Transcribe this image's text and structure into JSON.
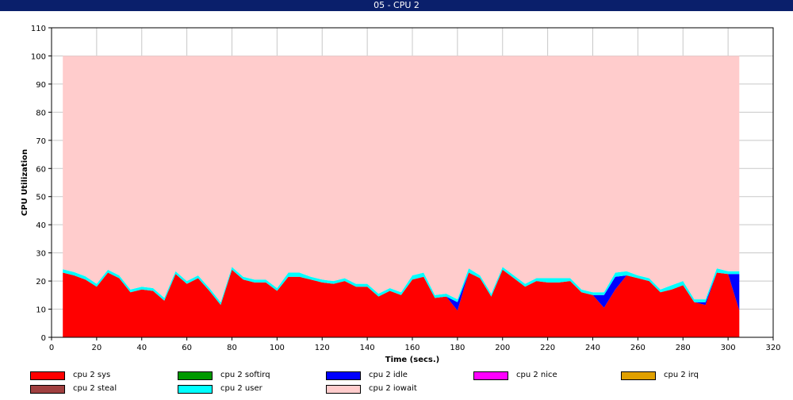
{
  "window": {
    "title": "05 - CPU 2"
  },
  "chart_data": {
    "type": "area",
    "stacked": true,
    "xlabel": "Time (secs.)",
    "ylabel": "CPU Utilization",
    "xlim": [
      0,
      320
    ],
    "ylim": [
      0,
      110
    ],
    "xticks": [
      0,
      20,
      40,
      60,
      80,
      100,
      120,
      140,
      160,
      180,
      200,
      220,
      240,
      260,
      280,
      300,
      320
    ],
    "yticks": [
      0,
      10,
      20,
      30,
      40,
      50,
      60,
      70,
      80,
      90,
      100,
      110
    ],
    "grid": true,
    "legend_position": "bottom",
    "x": [
      5,
      10,
      15,
      20,
      25,
      30,
      35,
      40,
      45,
      50,
      55,
      60,
      65,
      70,
      75,
      80,
      85,
      90,
      95,
      100,
      105,
      110,
      115,
      120,
      125,
      130,
      135,
      140,
      145,
      150,
      155,
      160,
      165,
      170,
      175,
      180,
      185,
      190,
      195,
      200,
      205,
      210,
      215,
      220,
      225,
      230,
      235,
      240,
      245,
      250,
      255,
      260,
      265,
      270,
      275,
      280,
      285,
      290,
      295,
      300,
      305
    ],
    "series": [
      {
        "name": "cpu 2 sys",
        "color": "#ff0000",
        "values": [
          23,
          22,
          20.5,
          18,
          23,
          21,
          16,
          17,
          16.5,
          13,
          22.5,
          19,
          21,
          16.5,
          11.5,
          24,
          20.5,
          19.5,
          19.5,
          16.5,
          21.5,
          21.5,
          20.5,
          19.5,
          19,
          20,
          18,
          18,
          14.5,
          16.5,
          15,
          20.5,
          21.5,
          14,
          14.5,
          9.5,
          23,
          21,
          14.5,
          24,
          21,
          18,
          20,
          19.5,
          19.5,
          20,
          16,
          15,
          10.5,
          17,
          22,
          21,
          20,
          16,
          17,
          18.5,
          12.5,
          11.5,
          23,
          22.5,
          9.5
        ]
      },
      {
        "name": "cpu 2 softirq",
        "color": "#009900",
        "values": [
          0,
          0,
          0,
          0,
          0,
          0,
          0,
          0,
          0,
          0,
          0,
          0,
          0,
          0,
          0,
          0,
          0,
          0,
          0,
          0,
          0,
          0,
          0,
          0,
          0,
          0,
          0,
          0,
          0,
          0,
          0,
          0,
          0,
          0,
          0,
          0,
          0,
          0,
          0,
          0,
          0,
          0,
          0,
          0,
          0,
          0,
          0,
          0,
          0,
          0,
          0,
          0,
          0,
          0,
          0,
          0,
          0,
          0,
          0,
          0,
          0
        ]
      },
      {
        "name": "cpu 2 idle",
        "color": "#0000ff",
        "values": [
          0,
          0,
          0,
          0,
          0,
          0,
          0,
          0,
          0,
          0,
          0,
          0,
          0,
          0,
          0,
          0,
          0,
          0,
          0,
          0,
          0,
          0,
          0,
          0,
          0,
          0,
          0,
          0,
          0,
          0,
          0,
          0,
          0,
          0,
          0,
          3,
          0,
          0,
          0,
          0,
          0,
          0,
          0,
          0,
          0,
          0,
          0,
          0,
          4.5,
          4.5,
          0,
          0,
          0,
          0,
          0,
          0,
          0,
          1,
          0,
          0,
          13
        ]
      },
      {
        "name": "cpu 2 nice",
        "color": "#ff00ff",
        "values": [
          0,
          0,
          0,
          0,
          0,
          0,
          0,
          0,
          0,
          0,
          0,
          0,
          0,
          0,
          0,
          0,
          0,
          0,
          0,
          0,
          0,
          0,
          0,
          0,
          0,
          0,
          0,
          0,
          0,
          0,
          0,
          0,
          0,
          0,
          0,
          0,
          0,
          0,
          0,
          0,
          0,
          0,
          0,
          0,
          0,
          0,
          0,
          0,
          0,
          0,
          0,
          0,
          0,
          0,
          0,
          0,
          0,
          0,
          0,
          0,
          0
        ]
      },
      {
        "name": "cpu 2 irq",
        "color": "#e0a000",
        "values": [
          0,
          0,
          0,
          0,
          0,
          0,
          0,
          0,
          0,
          0,
          0,
          0,
          0,
          0,
          0,
          0,
          0,
          0,
          0,
          0,
          0,
          0,
          0,
          0,
          0,
          0,
          0,
          0,
          0,
          0,
          0,
          0,
          0,
          0,
          0,
          0,
          0,
          0,
          0,
          0,
          0,
          0,
          0,
          0,
          0,
          0,
          0,
          0,
          0,
          0,
          0,
          0,
          0,
          0,
          0,
          0,
          0,
          0,
          0,
          0,
          0
        ]
      },
      {
        "name": "cpu 2 steal",
        "color": "#a04040",
        "values": [
          0,
          0,
          0,
          0,
          0,
          0,
          0,
          0,
          0,
          0,
          0,
          0,
          0,
          0,
          0,
          0,
          0,
          0,
          0,
          0,
          0,
          0,
          0,
          0,
          0,
          0,
          0,
          0,
          0,
          0,
          0,
          0,
          0,
          0,
          0,
          0,
          0,
          0,
          0,
          0,
          0,
          0,
          0,
          0,
          0,
          0,
          0,
          0,
          0,
          0,
          0,
          0,
          0,
          0,
          0,
          0,
          0,
          0,
          0,
          0,
          0
        ]
      },
      {
        "name": "cpu 2 user",
        "color": "#00ffff",
        "values": [
          1.2,
          1.2,
          1.2,
          1,
          1,
          1,
          1,
          1,
          1,
          1,
          1,
          1,
          1,
          1,
          1,
          1,
          1,
          1,
          1,
          1,
          1.5,
          1.5,
          1,
          1,
          1,
          1,
          1,
          1,
          1,
          1,
          1,
          1.5,
          1.5,
          1,
          1,
          1,
          1.5,
          1,
          1,
          1,
          1,
          1,
          1,
          1.5,
          1.5,
          1,
          1,
          1,
          1,
          1.5,
          1.5,
          1,
          1,
          1,
          1.5,
          1.5,
          1,
          1,
          1.5,
          1,
          1
        ]
      },
      {
        "name": "cpu 2 iowait",
        "color": "#ffcccc",
        "values": [
          75.8,
          76.8,
          78.3,
          81,
          76,
          78,
          83,
          82,
          82.5,
          86,
          76.5,
          80,
          78,
          82.5,
          87.5,
          75,
          78.5,
          79.5,
          79.5,
          82.5,
          77,
          77,
          78.5,
          79.5,
          80,
          79,
          81,
          81,
          84.5,
          82.5,
          84,
          78,
          77,
          85,
          84.5,
          86.5,
          75.5,
          78,
          84.5,
          75,
          78,
          81,
          79,
          79,
          79,
          79,
          83,
          84,
          84,
          77,
          76.5,
          78,
          79,
          83,
          81.5,
          80,
          86.5,
          86.5,
          75.5,
          76.5,
          76.5
        ]
      }
    ]
  }
}
